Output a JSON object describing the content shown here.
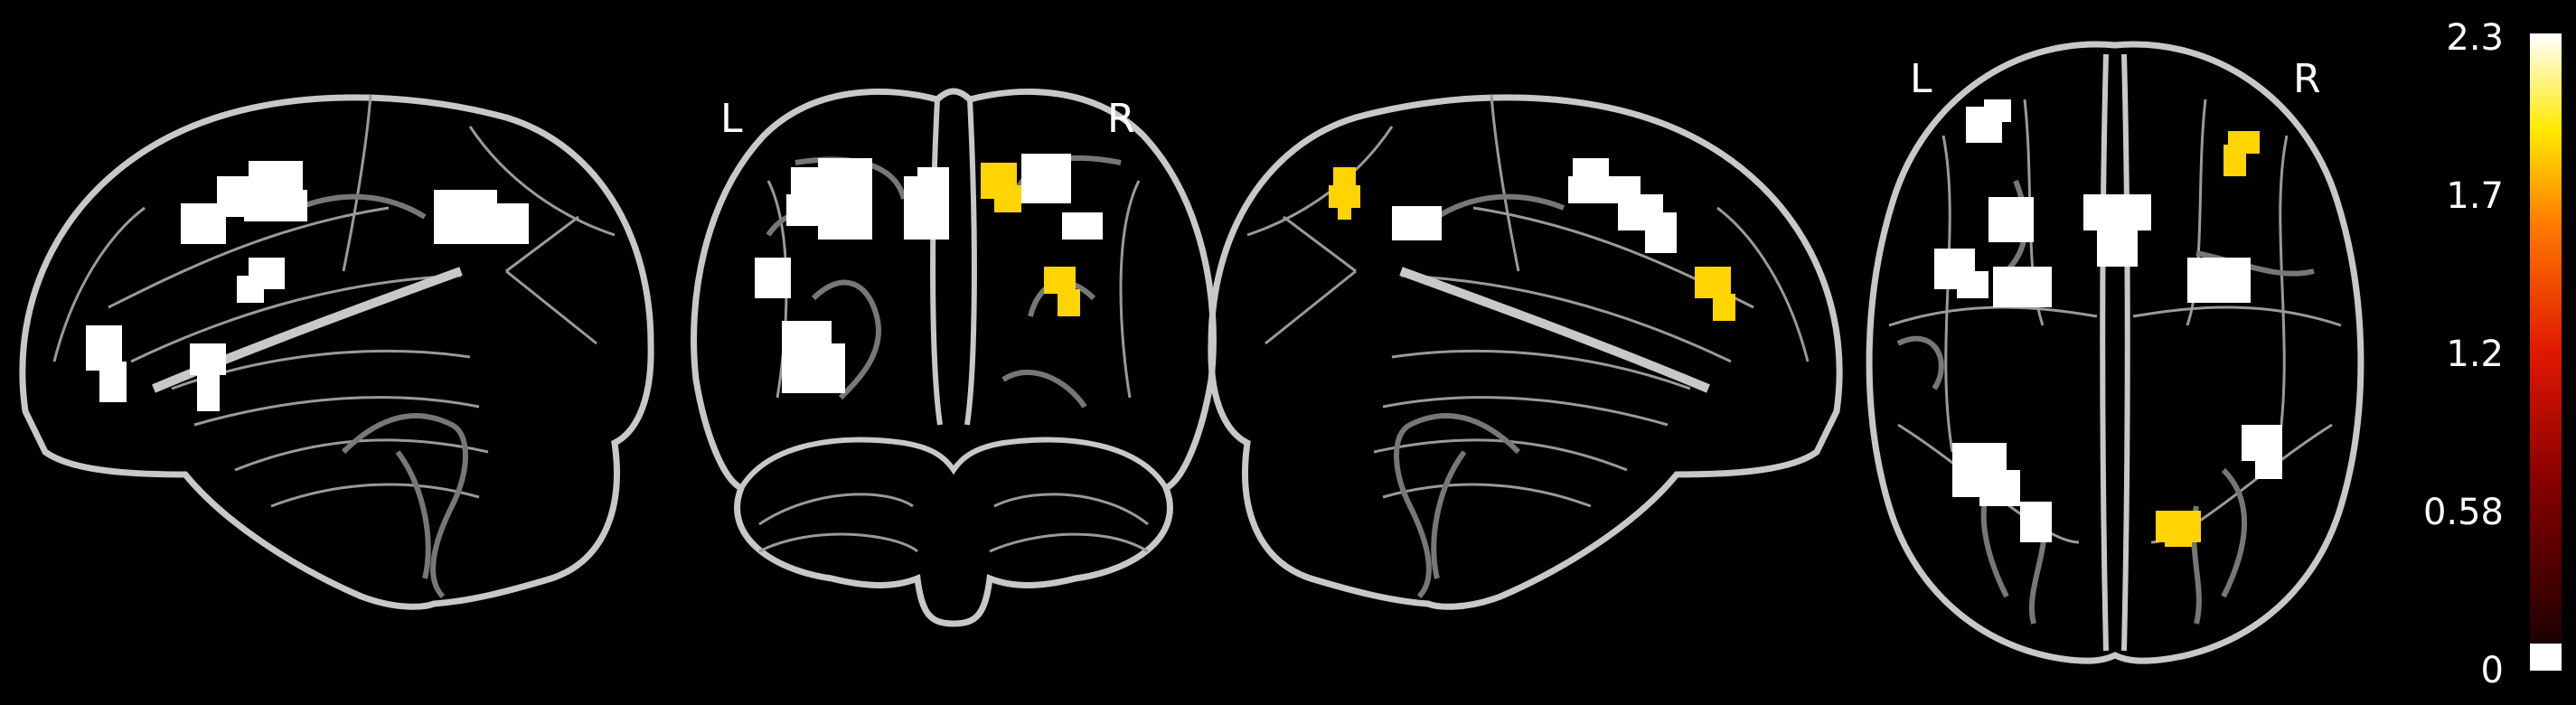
{
  "views": {
    "coronal": {
      "left_label": "L",
      "right_label": "R"
    },
    "axial": {
      "left_label": "L",
      "right_label": "R"
    }
  },
  "colorbar": {
    "ticks": [
      "2.3",
      "1.7",
      "1.2",
      "0.58",
      "0"
    ],
    "max_value": 2.3,
    "min_value": 0,
    "colormap": "hot"
  },
  "colors": {
    "background": "#000000",
    "outline": "#c8c8c8",
    "inner_line": "#9a9a9a",
    "blob_strong": "#ffffff",
    "blob_medium": "#ffd400"
  }
}
